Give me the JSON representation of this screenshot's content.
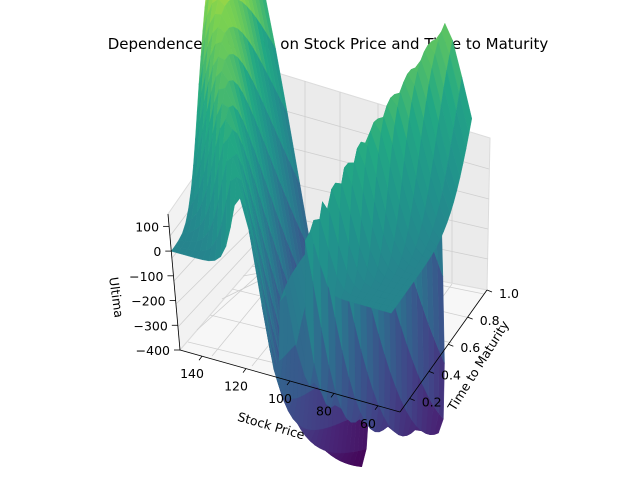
{
  "chart_data": {
    "type": "surface3d",
    "title": "Dependence of Ultima on Stock Price and Time to Maturity",
    "xlabel": "Stock Price",
    "ylabel": "Time to Maturity",
    "zlabel": "Ultima",
    "x_ticks": [
      "60",
      "80",
      "100",
      "120",
      "140"
    ],
    "y_ticks": [
      "0.2",
      "0.4",
      "0.6",
      "0.8",
      "1.0"
    ],
    "z_ticks": [
      "100",
      "0",
      "−100",
      "−200",
      "−300",
      "−400"
    ],
    "xlim": [
      50,
      150
    ],
    "ylim": [
      0.1,
      1.0
    ],
    "zlim": [
      -400,
      150
    ],
    "colormap": "viridis",
    "grid": true
  }
}
